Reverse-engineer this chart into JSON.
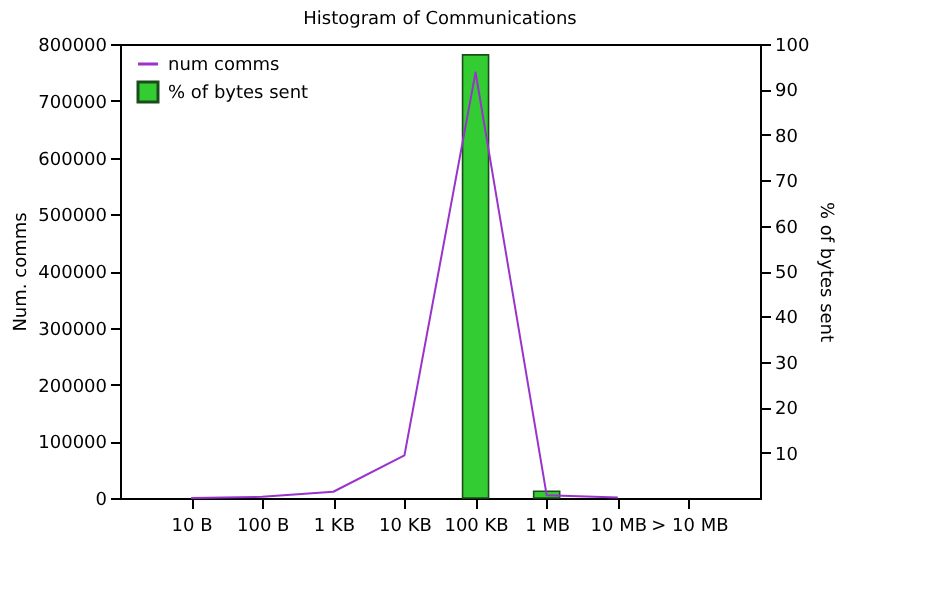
{
  "chart_data": {
    "type": "bar",
    "title": "Histogram of Communications",
    "ylabel": "Num. comms",
    "y2label": "% of bytes sent",
    "categories": [
      "10 B",
      "100 B",
      "1 KB",
      "10 KB",
      "100 KB",
      "1 MB",
      "10 MB",
      "> 10 MB"
    ],
    "series": [
      {
        "name": "num comms",
        "type": "line",
        "color": "#9933cc",
        "values": [
          0,
          2000,
          11000,
          75000,
          750000,
          5000,
          1000,
          null
        ]
      },
      {
        "name": "% of bytes sent",
        "axis": "y2",
        "color": "#33cc33",
        "values": [
          null,
          null,
          null,
          null,
          97.6,
          1.5,
          null,
          null
        ]
      }
    ],
    "ylim": [
      0,
      800000
    ],
    "yticks": [
      0,
      100000,
      200000,
      300000,
      400000,
      500000,
      600000,
      700000,
      800000
    ],
    "y2lim": [
      0,
      100
    ],
    "y2ticks": [
      10,
      20,
      30,
      40,
      50,
      60,
      70,
      80,
      90,
      100
    ],
    "grid": false,
    "legend": "top left"
  }
}
